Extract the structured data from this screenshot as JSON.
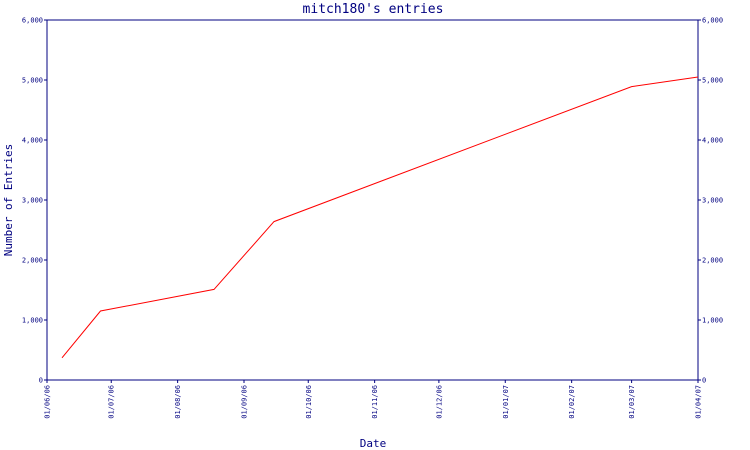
{
  "chart_data": {
    "type": "line",
    "title": "mitch180's entries",
    "xlabel": "Date",
    "ylabel": "Number of Entries",
    "x_ticks": [
      {
        "date": "2006-06-01",
        "label": "01/06/06"
      },
      {
        "date": "2006-07-01",
        "label": "01/07/06"
      },
      {
        "date": "2006-08-01",
        "label": "01/08/06"
      },
      {
        "date": "2006-09-01",
        "label": "01/09/06"
      },
      {
        "date": "2006-10-01",
        "label": "01/10/06"
      },
      {
        "date": "2006-11-01",
        "label": "01/11/06"
      },
      {
        "date": "2006-12-01",
        "label": "01/12/06"
      },
      {
        "date": "2007-01-01",
        "label": "01/01/07"
      },
      {
        "date": "2007-02-01",
        "label": "01/02/07"
      },
      {
        "date": "2007-03-01",
        "label": "01/03/07"
      },
      {
        "date": "2007-04-01",
        "label": "01/04/07"
      }
    ],
    "y_ticks": [
      {
        "value": 0,
        "label": "0"
      },
      {
        "value": 1000,
        "label": "1,000"
      },
      {
        "value": 2000,
        "label": "2,000"
      },
      {
        "value": 3000,
        "label": "3,000"
      },
      {
        "value": 4000,
        "label": "4,000"
      },
      {
        "value": 5000,
        "label": "5,000"
      },
      {
        "value": 6000,
        "label": "6,000"
      }
    ],
    "xlim": [
      "2006-06-01",
      "2007-04-01"
    ],
    "ylim": [
      0,
      6000
    ],
    "grid": false,
    "dual_y_axis": true,
    "series": [
      {
        "color": "#ff0000",
        "points": [
          {
            "x": "2006-06-08",
            "y": 370
          },
          {
            "x": "2006-06-26",
            "y": 1150
          },
          {
            "x": "2006-08-18",
            "y": 1510
          },
          {
            "x": "2006-09-15",
            "y": 2640
          },
          {
            "x": "2007-03-01",
            "y": 4890
          },
          {
            "x": "2007-04-01",
            "y": 5050
          }
        ]
      }
    ],
    "colors": {
      "axis": "#000080",
      "text": "#000080",
      "background": "#ffffff"
    }
  }
}
